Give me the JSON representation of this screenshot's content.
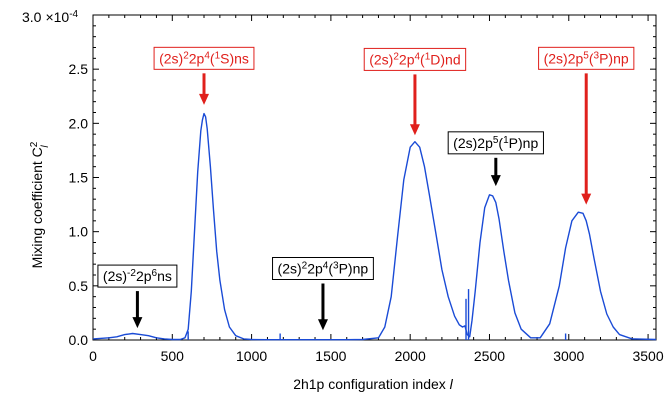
{
  "chart_data": {
    "type": "line",
    "xlabel": "2h1p configuration index",
    "xlabel_italic": "l",
    "ylabel": "Mixing coefficient C",
    "ylabel_sup": "2",
    "ylabel_sub": "l",
    "xlim": [
      0,
      3550
    ],
    "ylim": [
      0,
      0.0003
    ],
    "y_multiplier": "×10",
    "y_multiplier_exp": "-4",
    "grid": false,
    "legend": "none",
    "x_ticks": [
      0,
      500,
      1000,
      1500,
      2000,
      2500,
      3000,
      3500
    ],
    "x_tick_labels": [
      "0",
      "500",
      "1000",
      "1500",
      "2000",
      "2500",
      "3000",
      "3500"
    ],
    "y_ticks": [
      0,
      5e-05,
      0.0001,
      0.00015,
      0.0002,
      0.00025,
      0.0003
    ],
    "y_tick_labels": [
      "0.0",
      "0.5",
      "1.0",
      "1.5",
      "2.0",
      "2.5",
      "3.0"
    ],
    "line_color": "#1a4bd6",
    "red_color": "#e0201c",
    "black_color": "#000000",
    "series": [
      {
        "x": [
          0,
          100,
          150,
          200,
          250,
          300,
          350,
          400,
          450,
          500,
          550,
          580,
          600,
          620,
          640,
          660,
          680,
          690,
          700,
          710,
          720,
          740,
          760,
          780,
          800,
          830,
          860,
          900,
          950,
          1000,
          1100,
          1200,
          1300,
          1400,
          1500,
          1600,
          1700,
          1800,
          1840,
          1880,
          1920,
          1960,
          2000,
          2030,
          2060,
          2090,
          2120,
          2160,
          2200,
          2240,
          2280,
          2310,
          2330,
          2345,
          2360,
          2375,
          2390,
          2410,
          2440,
          2470,
          2500,
          2520,
          2540,
          2560,
          2590,
          2620,
          2660,
          2700,
          2760,
          2820,
          2880,
          2940,
          2980,
          3020,
          3060,
          3090,
          3110,
          3130,
          3160,
          3200,
          3240,
          3280,
          3320,
          3400,
          3550
        ],
        "y": [
          1e-06,
          2e-06,
          3e-06,
          5e-06,
          6e-06,
          5e-06,
          4e-06,
          2e-06,
          1e-06,
          5e-07,
          5e-07,
          2e-06,
          1e-05,
          4.5e-05,
          0.0001,
          0.000155,
          0.000193,
          0.000203,
          0.000209,
          0.000206,
          0.000195,
          0.00016,
          0.00012,
          8.2e-05,
          5.5e-05,
          2.8e-05,
          1.2e-05,
          4e-06,
          1e-06,
          5e-07,
          3e-07,
          3e-07,
          3e-07,
          3e-07,
          3e-07,
          3e-07,
          5e-07,
          2e-06,
          1.2e-05,
          4e-05,
          9.5e-05,
          0.000148,
          0.000178,
          0.000183,
          0.000178,
          0.00016,
          0.000135,
          0.0001,
          6.5e-05,
          4e-05,
          2.2e-05,
          1.4e-05,
          1.2e-05,
          1.3e-05,
          5e-06,
          3e-06,
          1.8e-05,
          4.5e-05,
          9e-05,
          0.000122,
          0.000134,
          0.000133,
          0.000127,
          0.000112,
          8.2e-05,
          5.5e-05,
          2.5e-05,
          1e-05,
          2e-06,
          2e-06,
          1.5e-05,
          5e-05,
          8.5e-05,
          0.00011,
          0.000118,
          0.000117,
          0.00011,
          9.8e-05,
          7.5e-05,
          4.5e-05,
          2.4e-05,
          1.2e-05,
          5e-06,
          1e-06,
          5e-07
        ],
        "spikes": [
          {
            "x": 600,
            "y": 8e-06
          },
          {
            "x": 1180,
            "y": 6e-06
          },
          {
            "x": 2352,
            "y": 3.8e-05
          },
          {
            "x": 2368,
            "y": 4.7e-05
          },
          {
            "x": 2980,
            "y": 6e-06
          }
        ]
      }
    ],
    "annotations": [
      {
        "name": "annotation-2s-2-2p6ns",
        "color": "black",
        "parts": [
          [
            "(2s)",
            "n"
          ],
          [
            "-2",
            "sup"
          ],
          [
            "2p",
            "n"
          ],
          [
            "6",
            "sup"
          ],
          [
            "ns",
            "n"
          ]
        ],
        "arrow_x": 280,
        "arrow_y_top": 4.7e-05,
        "arrow_y_tip": 1.1e-05
      },
      {
        "name": "annotation-2s2-2p4-1S-ns",
        "color": "red",
        "parts": [
          [
            "(2s)",
            "n"
          ],
          [
            "2",
            "sup"
          ],
          [
            "2p",
            "n"
          ],
          [
            "4",
            "sup"
          ],
          [
            "(",
            "n"
          ],
          [
            "1",
            "sup"
          ],
          [
            "S)ns",
            "n"
          ]
        ],
        "arrow_x": 700,
        "arrow_y_top": 0.000248,
        "arrow_y_tip": 0.000217
      },
      {
        "name": "annotation-2s2-2p4-3P-np",
        "color": "black",
        "parts": [
          [
            "(2s)",
            "n"
          ],
          [
            "2",
            "sup"
          ],
          [
            "2p",
            "n"
          ],
          [
            "4",
            "sup"
          ],
          [
            "(",
            "n"
          ],
          [
            "3",
            "sup"
          ],
          [
            "P)np",
            "n"
          ]
        ],
        "arrow_x": 1450,
        "arrow_y_top": 5.4e-05,
        "arrow_y_tip": 9e-06
      },
      {
        "name": "annotation-2s2-2p4-1D-nd",
        "color": "red",
        "parts": [
          [
            "(2s)",
            "n"
          ],
          [
            "2",
            "sup"
          ],
          [
            "2p",
            "n"
          ],
          [
            "4",
            "sup"
          ],
          [
            "(",
            "n"
          ],
          [
            "1",
            "sup"
          ],
          [
            "D)nd",
            "n"
          ]
        ],
        "arrow_x": 2030,
        "arrow_y_top": 0.000247,
        "arrow_y_tip": 0.000189
      },
      {
        "name": "annotation-2s-2p5-1P-np",
        "color": "black",
        "parts": [
          [
            "(2s)2p",
            "n"
          ],
          [
            "5",
            "sup"
          ],
          [
            "(",
            "n"
          ],
          [
            "1",
            "sup"
          ],
          [
            "P)np",
            "n"
          ]
        ],
        "arrow_x": 2540,
        "arrow_y_top": 0.00017,
        "arrow_y_tip": 0.000142
      },
      {
        "name": "annotation-2s-2p5-3P-np",
        "color": "red",
        "parts": [
          [
            "(2s)2p",
            "n"
          ],
          [
            "5",
            "sup"
          ],
          [
            "(",
            "n"
          ],
          [
            "3",
            "sup"
          ],
          [
            "P)np",
            "n"
          ]
        ],
        "arrow_x": 3110,
        "arrow_y_top": 0.000248,
        "arrow_y_tip": 0.000125
      }
    ]
  }
}
